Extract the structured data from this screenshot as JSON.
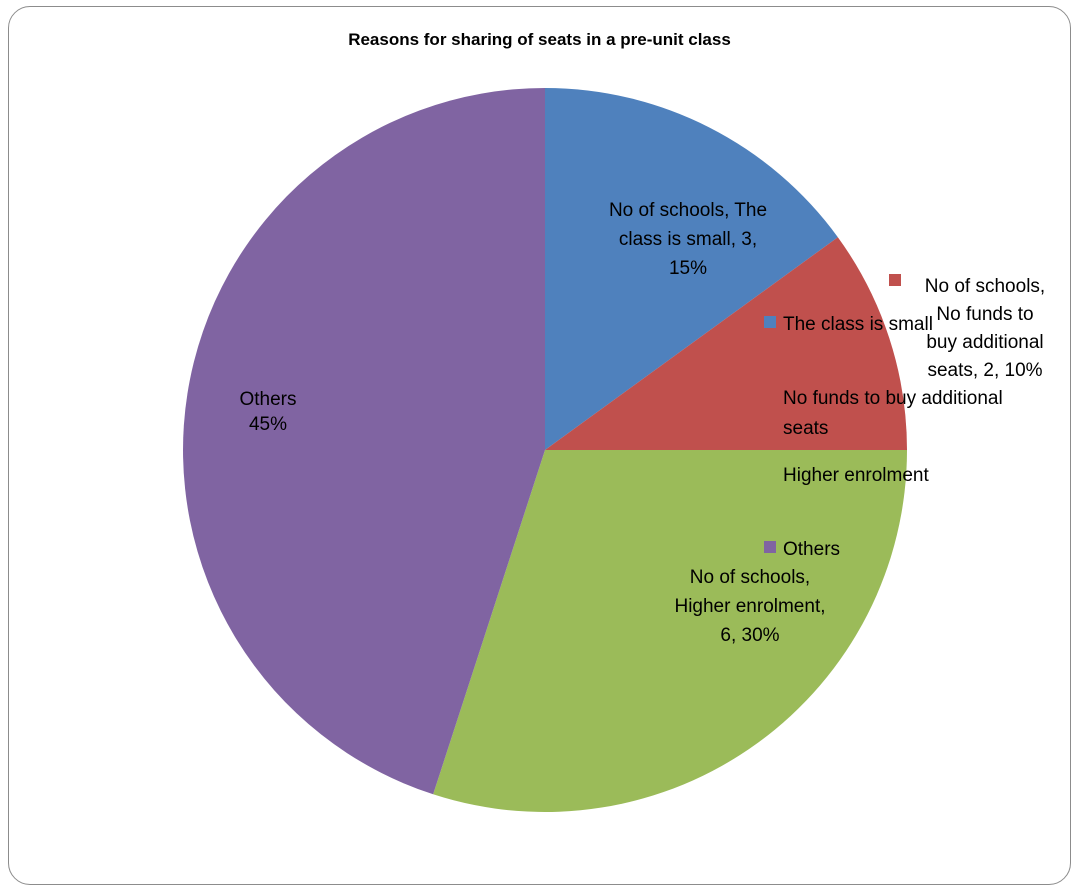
{
  "chart_data": {
    "type": "pie",
    "title": "Reasons for sharing of seats in a pre-unit class",
    "series_name": "No of schools",
    "categories": [
      "The class is small",
      "No funds to buy additional seats",
      "Higher enrolment",
      "Others"
    ],
    "values": [
      3,
      2,
      6,
      9
    ],
    "percent_labels": [
      "15%",
      "10%",
      "30%",
      "45%"
    ],
    "colors": [
      "#4F81BD",
      "#C0504D",
      "#9BBB59",
      "#8064A2"
    ],
    "data_labels": [
      [
        "No of schools, The",
        "class is small, 3,",
        "15%"
      ],
      [
        "No of schools,",
        "No funds to",
        "buy additional",
        "seats, 2, 10%"
      ],
      [
        "No of schools,",
        "Higher enrolment,",
        "6, 30%"
      ],
      [
        "Others",
        "45%"
      ]
    ],
    "legend": {
      "position": "right",
      "entries": [
        {
          "label_lines": [
            "The class is small"
          ],
          "marker": true
        },
        {
          "label_lines": [
            "No funds to buy additional",
            "seats"
          ],
          "marker": false
        },
        {
          "label_lines": [
            "Higher enrolment"
          ],
          "marker": false
        },
        {
          "label_lines": [
            "Others"
          ],
          "marker": true
        }
      ]
    }
  }
}
